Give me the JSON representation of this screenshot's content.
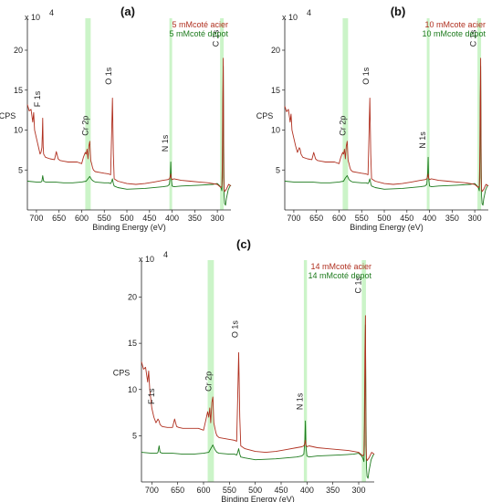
{
  "chart_data": [
    {
      "type": "line",
      "panel_label": "(a)",
      "xlabel": "Binding Energy (eV)",
      "ylabel": "CPS",
      "multiplier": "x 10",
      "multiplier_exp": "4",
      "xlim": [
        720,
        270
      ],
      "ylim": [
        0,
        24
      ],
      "x_reversed": true,
      "x_ticks": [
        700,
        650,
        600,
        550,
        500,
        450,
        400,
        350,
        300
      ],
      "y_ticks": [
        5,
        10,
        15,
        20
      ],
      "highlight_bands": [
        [
          592,
          580
        ],
        [
          406,
          400
        ],
        [
          294,
          286
        ]
      ],
      "legend_position": "top-right",
      "peak_labels": [
        {
          "label": "F 1s",
          "x": 686,
          "y": 12.2
        },
        {
          "label": "Cr 2p",
          "x": 578,
          "y": 8.6
        },
        {
          "label": "O 1s",
          "x": 534,
          "y": 15.0
        },
        {
          "label": "N 1s",
          "x": 403,
          "y": 6.6
        },
        {
          "label": "C 1s",
          "x": 287,
          "y": 20.2
        }
      ],
      "series": [
        {
          "name": "5 mMcoté acier",
          "color": "#b03020",
          "x": [
            720,
            716,
            712,
            708,
            706,
            704,
            700,
            696,
            692,
            690,
            688,
            687,
            686,
            685,
            684,
            680,
            670,
            660,
            656,
            652,
            648,
            640,
            630,
            620,
            610,
            600,
            596,
            592,
            590,
            588,
            586,
            584,
            582,
            580,
            578,
            576,
            574,
            572,
            570,
            560,
            550,
            540,
            536,
            534,
            532,
            530,
            528,
            520,
            500,
            480,
            460,
            440,
            420,
            410,
            406,
            404,
            403,
            402,
            400,
            396,
            380,
            360,
            340,
            320,
            300,
            296,
            292,
            290,
            289,
            288,
            287,
            286,
            285,
            284,
            280,
            275,
            270
          ],
          "y": [
            13.2,
            12.4,
            12.6,
            11.0,
            12.2,
            10.0,
            9.0,
            8.0,
            7.0,
            7.2,
            7.8,
            9.5,
            11.5,
            8.0,
            7.0,
            6.6,
            6.4,
            6.3,
            7.3,
            6.4,
            6.2,
            6.1,
            6.0,
            6.0,
            6.0,
            5.8,
            6.6,
            7.2,
            7.0,
            7.6,
            6.4,
            8.0,
            8.6,
            6.2,
            5.8,
            5.3,
            5.0,
            4.9,
            4.8,
            4.7,
            4.6,
            4.5,
            4.4,
            9.0,
            14.0,
            7.0,
            3.9,
            3.6,
            3.3,
            3.2,
            3.3,
            3.5,
            3.7,
            3.8,
            3.9,
            4.2,
            4.5,
            4.0,
            3.8,
            3.9,
            3.7,
            3.6,
            3.5,
            3.4,
            3.2,
            3.0,
            2.8,
            3.0,
            6.0,
            14.0,
            19.0,
            4.0,
            2.6,
            2.3,
            2.6,
            3.2,
            3.0
          ]
        },
        {
          "name": "5 mMcoté depot",
          "color": "#1d7a1d",
          "x": [
            720,
            700,
            690,
            688,
            686,
            684,
            680,
            660,
            640,
            620,
            600,
            590,
            586,
            582,
            578,
            574,
            570,
            550,
            540,
            536,
            534,
            532,
            530,
            528,
            520,
            500,
            460,
            420,
            410,
            406,
            404,
            403,
            402,
            400,
            396,
            380,
            340,
            310,
            300,
            296,
            292,
            290,
            289,
            288,
            287,
            286,
            285,
            284,
            282,
            280,
            276,
            272,
            270
          ],
          "y": [
            3.6,
            3.5,
            3.5,
            3.6,
            4.3,
            3.6,
            3.5,
            3.5,
            3.4,
            3.4,
            3.5,
            3.6,
            3.9,
            4.2,
            3.8,
            3.6,
            3.5,
            3.4,
            3.4,
            3.3,
            3.5,
            3.9,
            3.3,
            3.0,
            2.8,
            2.6,
            2.7,
            2.9,
            3.0,
            3.2,
            4.5,
            6.0,
            4.0,
            3.0,
            2.9,
            3.0,
            3.1,
            3.2,
            3.3,
            3.1,
            2.8,
            2.4,
            4.0,
            10.0,
            18.0,
            8.0,
            1.8,
            0.8,
            0.6,
            1.4,
            2.5,
            3.0,
            3.1
          ]
        }
      ]
    },
    {
      "type": "line",
      "panel_label": "(b)",
      "xlabel": "Binding Energy (eV)",
      "ylabel": "CPS",
      "multiplier": "x 10",
      "multiplier_exp": "4",
      "xlim": [
        720,
        270
      ],
      "ylim": [
        0,
        24
      ],
      "x_reversed": true,
      "x_ticks": [
        700,
        650,
        600,
        550,
        500,
        450,
        400,
        350,
        300
      ],
      "y_ticks": [
        5,
        10,
        15,
        20
      ],
      "highlight_bands": [
        [
          592,
          580
        ],
        [
          406,
          400
        ],
        [
          294,
          286
        ]
      ],
      "legend_position": "top-right",
      "peak_labels": [
        {
          "label": "Cr 2p",
          "x": 578,
          "y": 8.6
        },
        {
          "label": "O 1s",
          "x": 534,
          "y": 15.0
        },
        {
          "label": "N 1s",
          "x": 403,
          "y": 7.0
        },
        {
          "label": "C 1s",
          "x": 287,
          "y": 20.2
        }
      ],
      "series": [
        {
          "name": "10 mMcote acier",
          "color": "#b03020",
          "x": [
            720,
            716,
            712,
            708,
            706,
            704,
            700,
            696,
            692,
            688,
            686,
            684,
            680,
            670,
            660,
            656,
            652,
            648,
            640,
            630,
            620,
            610,
            600,
            596,
            592,
            590,
            588,
            586,
            584,
            582,
            580,
            578,
            576,
            574,
            572,
            570,
            560,
            550,
            540,
            536,
            534,
            532,
            530,
            528,
            520,
            500,
            480,
            460,
            440,
            420,
            410,
            406,
            404,
            403,
            402,
            400,
            396,
            380,
            360,
            340,
            320,
            300,
            296,
            292,
            290,
            289,
            288,
            287,
            286,
            285,
            284,
            280,
            275,
            270
          ],
          "y": [
            13.0,
            12.3,
            12.6,
            11.0,
            12.0,
            10.0,
            9.0,
            8.0,
            7.2,
            7.8,
            7.6,
            7.0,
            6.6,
            6.4,
            6.3,
            7.2,
            6.4,
            6.2,
            6.1,
            6.0,
            6.0,
            6.0,
            5.8,
            6.6,
            7.2,
            7.0,
            7.6,
            6.4,
            8.0,
            8.6,
            6.2,
            5.8,
            5.3,
            5.0,
            4.9,
            4.8,
            4.7,
            4.6,
            4.5,
            4.4,
            9.0,
            14.0,
            7.0,
            3.9,
            3.6,
            3.3,
            3.2,
            3.3,
            3.5,
            3.7,
            3.8,
            3.9,
            4.2,
            4.5,
            4.0,
            3.8,
            3.9,
            3.7,
            3.6,
            3.5,
            3.4,
            3.2,
            3.0,
            2.8,
            3.0,
            6.0,
            14.0,
            19.0,
            4.0,
            2.6,
            2.3,
            2.6,
            3.2,
            3.0
          ]
        },
        {
          "name": "10 mMcote depot",
          "color": "#1d7a1d",
          "x": [
            720,
            700,
            680,
            660,
            640,
            620,
            600,
            590,
            586,
            582,
            578,
            574,
            570,
            550,
            540,
            536,
            534,
            532,
            530,
            528,
            520,
            500,
            460,
            420,
            410,
            406,
            404,
            403,
            402,
            400,
            396,
            380,
            340,
            310,
            300,
            296,
            292,
            290,
            289,
            288,
            287,
            286,
            285,
            284,
            282,
            280,
            276,
            272,
            270
          ],
          "y": [
            3.6,
            3.5,
            3.5,
            3.5,
            3.4,
            3.4,
            3.5,
            3.6,
            4.0,
            4.3,
            3.8,
            3.6,
            3.5,
            3.4,
            3.4,
            3.3,
            3.5,
            3.9,
            3.3,
            3.0,
            2.8,
            2.6,
            2.7,
            2.9,
            3.0,
            3.2,
            4.8,
            6.6,
            4.0,
            3.0,
            2.9,
            3.0,
            3.1,
            3.2,
            3.3,
            3.1,
            2.8,
            2.4,
            4.0,
            10.0,
            18.0,
            8.0,
            1.8,
            0.8,
            0.6,
            1.4,
            2.5,
            3.0,
            3.1
          ]
        }
      ]
    },
    {
      "type": "line",
      "panel_label": "(c)",
      "xlabel": "Binding Energy (eV)",
      "ylabel": "CPS",
      "multiplier": "x 10",
      "multiplier_exp": "4",
      "xlim": [
        720,
        270
      ],
      "ylim": [
        0,
        24
      ],
      "x_reversed": true,
      "x_ticks": [
        700,
        650,
        600,
        550,
        500,
        450,
        400,
        350,
        300
      ],
      "y_ticks": [
        5,
        10,
        15,
        20
      ],
      "highlight_bands": [
        [
          592,
          580
        ],
        [
          406,
          400
        ],
        [
          294,
          286
        ]
      ],
      "legend_position": "top-right",
      "peak_labels": [
        {
          "label": "F 1s",
          "x": 690,
          "y": 7.8
        },
        {
          "label": "Cr 2p",
          "x": 578,
          "y": 9.2
        },
        {
          "label": "O 1s",
          "x": 534,
          "y": 15.0
        },
        {
          "label": "N 1s",
          "x": 403,
          "y": 7.2
        },
        {
          "label": "C 1s",
          "x": 287,
          "y": 20.2
        }
      ],
      "series": [
        {
          "name": "14 mMcoté acier",
          "color": "#b03020",
          "x": [
            720,
            716,
            712,
            708,
            706,
            704,
            700,
            696,
            692,
            688,
            686,
            684,
            680,
            670,
            660,
            656,
            652,
            648,
            640,
            630,
            620,
            610,
            600,
            596,
            592,
            590,
            588,
            586,
            584,
            582,
            580,
            578,
            576,
            574,
            572,
            570,
            560,
            550,
            540,
            536,
            534,
            532,
            530,
            528,
            520,
            500,
            480,
            460,
            440,
            420,
            410,
            406,
            404,
            403,
            402,
            400,
            396,
            380,
            360,
            340,
            320,
            300,
            296,
            292,
            290,
            289,
            288,
            287,
            286,
            285,
            284,
            280,
            275,
            270
          ],
          "y": [
            13.0,
            12.2,
            12.4,
            10.8,
            12.0,
            10.0,
            8.0,
            7.0,
            6.4,
            6.8,
            6.6,
            6.2,
            6.0,
            5.9,
            5.9,
            6.8,
            6.0,
            5.9,
            5.8,
            5.8,
            5.8,
            5.8,
            5.6,
            6.6,
            7.6,
            7.0,
            8.0,
            6.4,
            8.6,
            9.2,
            6.4,
            5.8,
            5.3,
            5.0,
            4.9,
            4.8,
            4.7,
            4.6,
            4.5,
            4.4,
            9.0,
            14.0,
            7.0,
            3.9,
            3.6,
            3.3,
            3.2,
            3.3,
            3.5,
            3.7,
            3.8,
            3.9,
            4.2,
            4.5,
            4.0,
            3.8,
            3.9,
            3.7,
            3.6,
            3.5,
            3.4,
            3.2,
            3.0,
            2.8,
            3.0,
            6.0,
            14.0,
            18.0,
            4.0,
            2.6,
            2.3,
            2.6,
            3.2,
            3.0
          ]
        },
        {
          "name": "14 mMcoté depot",
          "color": "#1d7a1d",
          "x": [
            720,
            700,
            690,
            688,
            686,
            684,
            680,
            660,
            640,
            620,
            600,
            590,
            586,
            582,
            578,
            574,
            570,
            550,
            540,
            536,
            534,
            532,
            530,
            528,
            520,
            500,
            460,
            420,
            410,
            406,
            404,
            403,
            402,
            400,
            396,
            380,
            340,
            310,
            300,
            296,
            292,
            290,
            289,
            288,
            287,
            286,
            285,
            284,
            282,
            280,
            276,
            272,
            270
          ],
          "y": [
            3.2,
            3.1,
            3.1,
            3.2,
            3.9,
            3.2,
            3.1,
            3.1,
            3.0,
            3.0,
            3.1,
            3.2,
            3.6,
            4.0,
            3.5,
            3.2,
            3.1,
            3.0,
            3.0,
            2.9,
            3.2,
            3.6,
            3.0,
            2.7,
            2.6,
            2.4,
            2.5,
            2.7,
            2.8,
            3.0,
            4.6,
            6.6,
            3.8,
            2.8,
            2.7,
            2.8,
            2.9,
            3.0,
            3.1,
            2.9,
            2.6,
            2.2,
            4.0,
            10.0,
            17.0,
            8.0,
            1.6,
            0.6,
            0.4,
            1.2,
            2.4,
            2.9,
            3.0
          ]
        }
      ]
    }
  ]
}
